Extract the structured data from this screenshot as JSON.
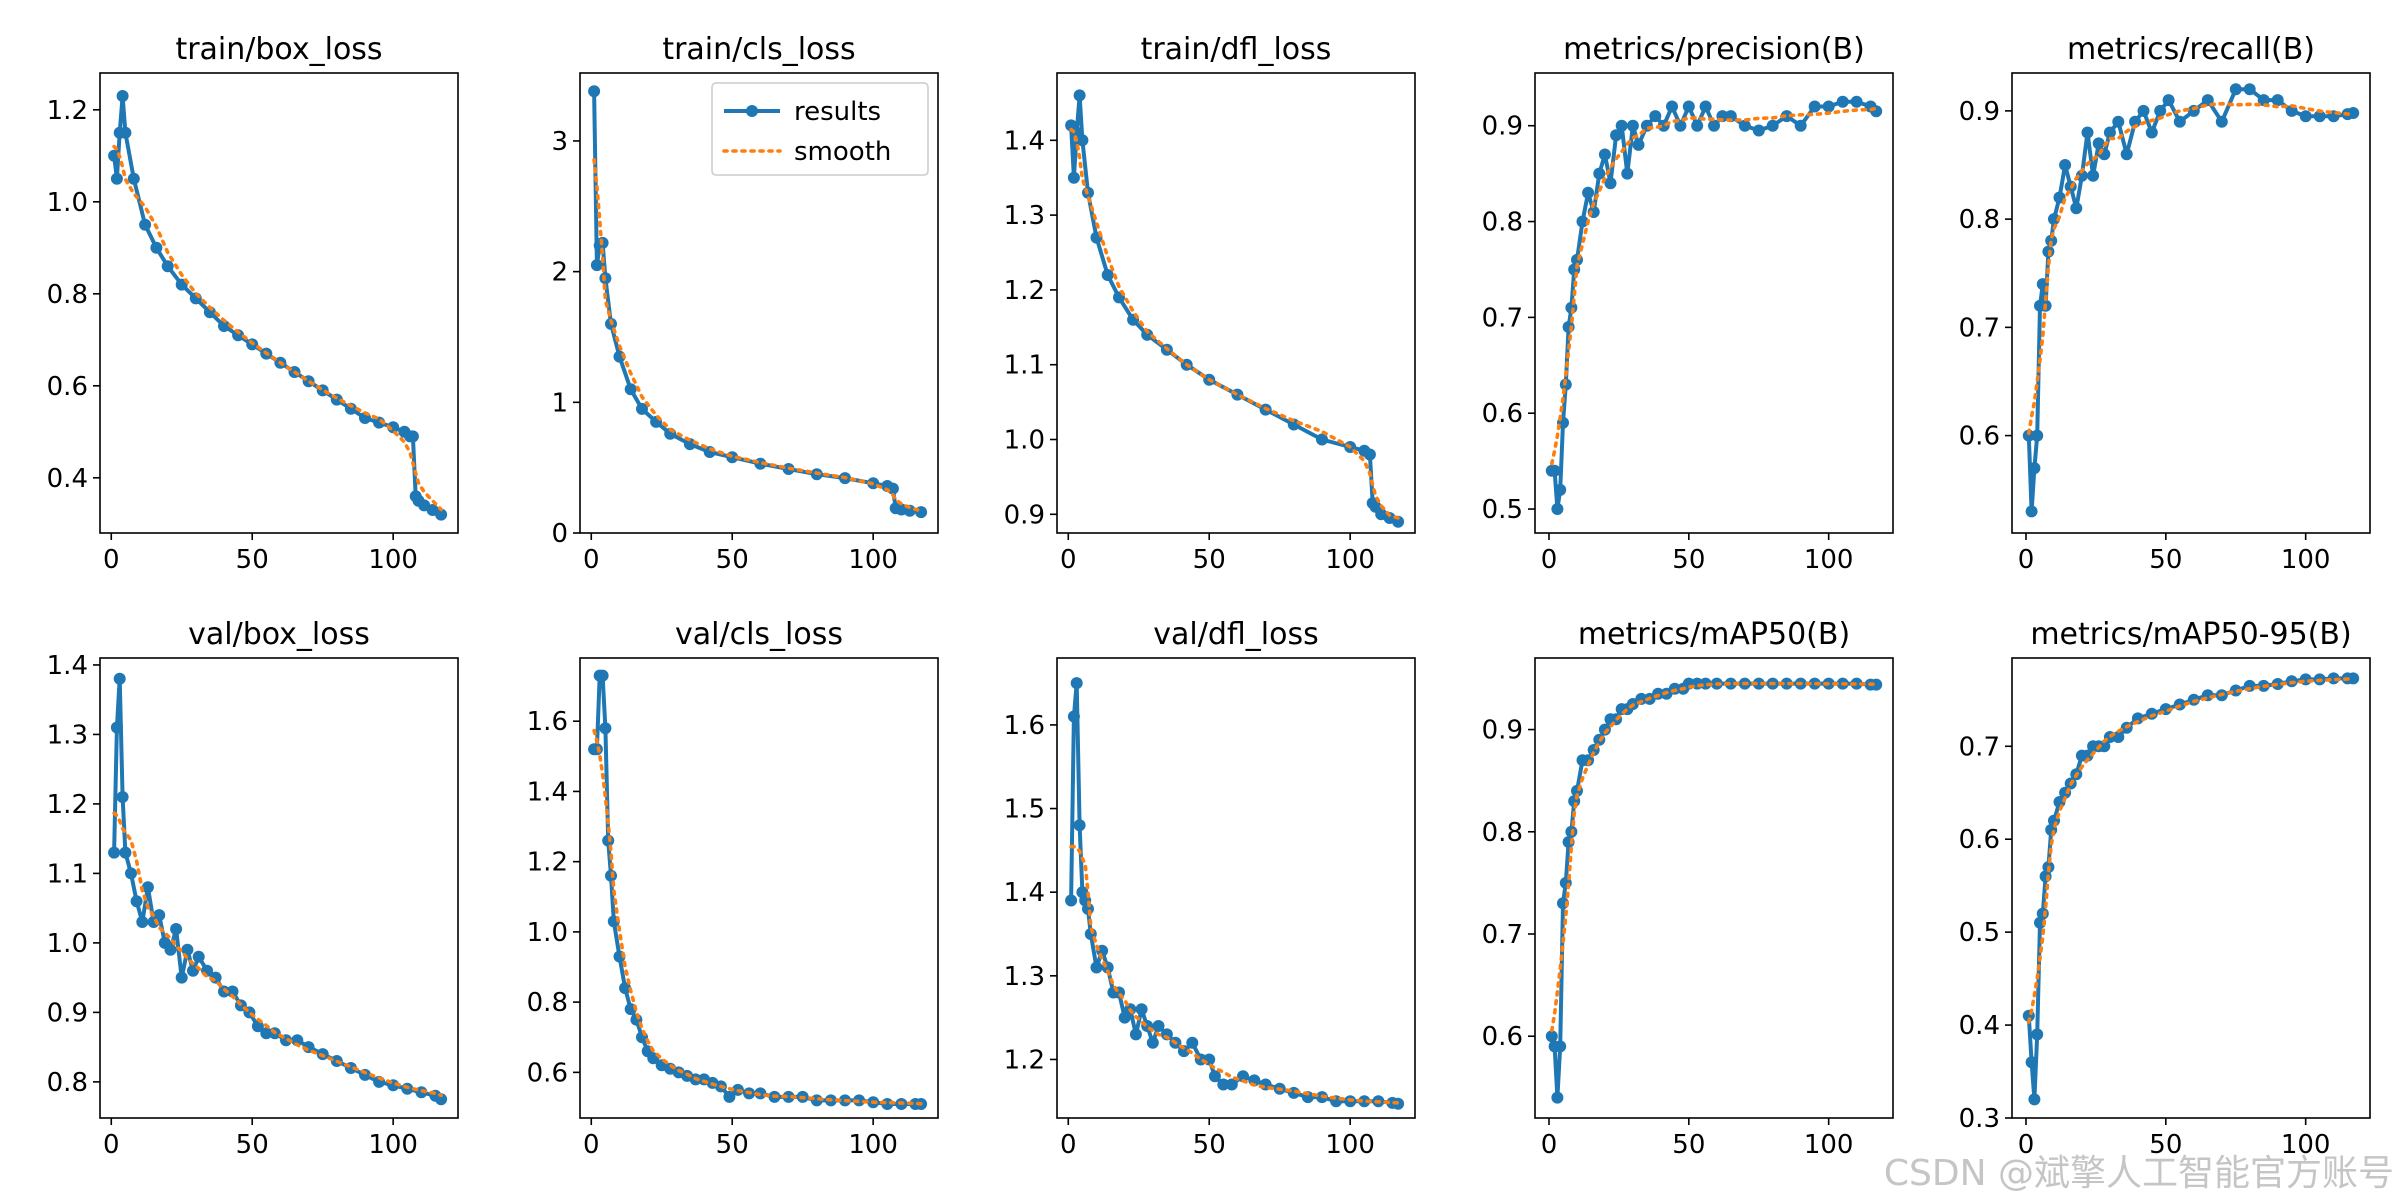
{
  "figure": {
    "watermark": "CSDN @斌擎人工智能官方账号"
  },
  "legend": {
    "results": "results",
    "smooth": "smooth"
  },
  "colors": {
    "results": "#1f77b4",
    "smooth": "#ff7f0e"
  },
  "chart_data": [
    {
      "type": "line",
      "title": "train/box_loss",
      "x": [
        1,
        2,
        3,
        4,
        5,
        8,
        12,
        16,
        20,
        25,
        30,
        35,
        40,
        45,
        50,
        55,
        60,
        65,
        70,
        75,
        80,
        85,
        90,
        95,
        100,
        104,
        106,
        107,
        108,
        109,
        111,
        114,
        117
      ],
      "series": [
        {
          "name": "results",
          "values": [
            1.1,
            1.05,
            1.15,
            1.23,
            1.15,
            1.05,
            0.95,
            0.9,
            0.86,
            0.82,
            0.79,
            0.76,
            0.73,
            0.71,
            0.69,
            0.67,
            0.65,
            0.63,
            0.61,
            0.59,
            0.57,
            0.55,
            0.53,
            0.52,
            0.51,
            0.5,
            0.49,
            0.49,
            0.36,
            0.35,
            0.34,
            0.33,
            0.32
          ]
        }
      ],
      "xlim": [
        -4,
        123
      ],
      "ylim": [
        0.28,
        1.28
      ],
      "xticks": [
        0,
        50,
        100
      ],
      "yticks": [
        0.4,
        0.6,
        0.8,
        1.0,
        1.2
      ],
      "xticklabels": [
        "0",
        "50",
        "100"
      ],
      "yticklabels": [
        "0.4",
        "0.6",
        "0.8",
        "1.0",
        "1.2"
      ]
    },
    {
      "type": "line",
      "title": "train/cls_loss",
      "x": [
        1,
        2,
        3,
        4,
        5,
        7,
        10,
        14,
        18,
        23,
        28,
        35,
        42,
        50,
        60,
        70,
        80,
        90,
        100,
        105,
        107,
        108,
        110,
        113,
        117
      ],
      "series": [
        {
          "name": "results",
          "values": [
            3.38,
            2.05,
            2.2,
            2.22,
            1.95,
            1.6,
            1.35,
            1.1,
            0.95,
            0.85,
            0.76,
            0.68,
            0.62,
            0.58,
            0.53,
            0.49,
            0.45,
            0.42,
            0.38,
            0.36,
            0.34,
            0.19,
            0.18,
            0.17,
            0.16
          ]
        }
      ],
      "xlim": [
        -4,
        123
      ],
      "ylim": [
        0,
        3.52
      ],
      "xticks": [
        0,
        50,
        100
      ],
      "yticks": [
        0,
        1,
        2,
        3
      ],
      "xticklabels": [
        "0",
        "50",
        "100"
      ],
      "yticklabels": [
        "0",
        "1",
        "2",
        "3"
      ],
      "legend": "upper right"
    },
    {
      "type": "line",
      "title": "train/dfl_loss",
      "x": [
        1,
        2,
        3,
        4,
        5,
        7,
        10,
        14,
        18,
        23,
        28,
        35,
        42,
        50,
        60,
        70,
        80,
        90,
        100,
        105,
        107,
        108,
        109,
        111,
        114,
        117
      ],
      "series": [
        {
          "name": "results",
          "values": [
            1.42,
            1.35,
            1.41,
            1.46,
            1.4,
            1.33,
            1.27,
            1.22,
            1.19,
            1.16,
            1.14,
            1.12,
            1.1,
            1.08,
            1.06,
            1.04,
            1.02,
            1.0,
            0.99,
            0.985,
            0.98,
            0.915,
            0.91,
            0.9,
            0.895,
            0.89
          ]
        }
      ],
      "xlim": [
        -4,
        123
      ],
      "ylim": [
        0.875,
        1.49
      ],
      "xticks": [
        0,
        50,
        100
      ],
      "yticks": [
        0.9,
        1.0,
        1.1,
        1.2,
        1.3,
        1.4
      ],
      "xticklabels": [
        "0",
        "50",
        "100"
      ],
      "yticklabels": [
        "0.9",
        "1.0",
        "1.1",
        "1.2",
        "1.3",
        "1.4"
      ]
    },
    {
      "type": "line",
      "title": "metrics/precision(B)",
      "x": [
        1,
        2,
        3,
        4,
        5,
        6,
        7,
        8,
        9,
        10,
        12,
        14,
        16,
        18,
        20,
        22,
        24,
        26,
        28,
        30,
        32,
        35,
        38,
        41,
        44,
        47,
        50,
        53,
        56,
        59,
        62,
        65,
        70,
        75,
        80,
        85,
        90,
        95,
        100,
        105,
        110,
        115,
        117
      ],
      "series": [
        {
          "name": "results",
          "values": [
            0.54,
            0.54,
            0.5,
            0.52,
            0.59,
            0.63,
            0.69,
            0.71,
            0.75,
            0.76,
            0.8,
            0.83,
            0.81,
            0.85,
            0.87,
            0.84,
            0.89,
            0.9,
            0.85,
            0.9,
            0.88,
            0.9,
            0.91,
            0.9,
            0.92,
            0.9,
            0.92,
            0.9,
            0.92,
            0.9,
            0.91,
            0.91,
            0.9,
            0.895,
            0.9,
            0.91,
            0.9,
            0.92,
            0.92,
            0.925,
            0.925,
            0.92,
            0.915
          ]
        }
      ],
      "xlim": [
        -5,
        123
      ],
      "ylim": [
        0.475,
        0.955
      ],
      "xticks": [
        0,
        50,
        100
      ],
      "yticks": [
        0.5,
        0.6,
        0.7,
        0.8,
        0.9
      ],
      "xticklabels": [
        "0",
        "50",
        "100"
      ],
      "yticklabels": [
        "0.5",
        "0.6",
        "0.7",
        "0.8",
        "0.9"
      ]
    },
    {
      "type": "line",
      "title": "metrics/recall(B)",
      "x": [
        1,
        2,
        3,
        4,
        5,
        6,
        7,
        8,
        9,
        10,
        12,
        14,
        16,
        18,
        20,
        22,
        24,
        26,
        28,
        30,
        33,
        36,
        39,
        42,
        45,
        48,
        51,
        55,
        60,
        65,
        70,
        75,
        80,
        85,
        90,
        95,
        100,
        105,
        110,
        115,
        117
      ],
      "series": [
        {
          "name": "results",
          "values": [
            0.6,
            0.53,
            0.57,
            0.6,
            0.72,
            0.74,
            0.72,
            0.77,
            0.78,
            0.8,
            0.82,
            0.85,
            0.83,
            0.81,
            0.84,
            0.88,
            0.84,
            0.87,
            0.86,
            0.88,
            0.89,
            0.86,
            0.89,
            0.9,
            0.88,
            0.9,
            0.91,
            0.89,
            0.9,
            0.91,
            0.89,
            0.92,
            0.92,
            0.91,
            0.91,
            0.9,
            0.895,
            0.895,
            0.895,
            0.897,
            0.898
          ]
        }
      ],
      "xlim": [
        -5,
        123
      ],
      "ylim": [
        0.51,
        0.935
      ],
      "xticks": [
        0,
        50,
        100
      ],
      "yticks": [
        0.6,
        0.7,
        0.8,
        0.9
      ],
      "xticklabels": [
        "0",
        "50",
        "100"
      ],
      "yticklabels": [
        "0.6",
        "0.7",
        "0.8",
        "0.9"
      ]
    },
    {
      "type": "line",
      "title": "val/box_loss",
      "x": [
        1,
        2,
        3,
        4,
        5,
        7,
        9,
        11,
        13,
        15,
        17,
        19,
        21,
        23,
        25,
        27,
        29,
        31,
        34,
        37,
        40,
        43,
        46,
        49,
        52,
        55,
        58,
        62,
        66,
        70,
        75,
        80,
        85,
        90,
        95,
        100,
        105,
        110,
        115,
        117
      ],
      "series": [
        {
          "name": "results",
          "values": [
            1.13,
            1.31,
            1.38,
            1.21,
            1.13,
            1.1,
            1.06,
            1.03,
            1.08,
            1.03,
            1.04,
            1.0,
            0.99,
            1.02,
            0.95,
            0.99,
            0.96,
            0.98,
            0.96,
            0.95,
            0.93,
            0.93,
            0.91,
            0.9,
            0.88,
            0.87,
            0.87,
            0.86,
            0.86,
            0.85,
            0.84,
            0.83,
            0.82,
            0.81,
            0.8,
            0.795,
            0.79,
            0.785,
            0.78,
            0.775
          ]
        }
      ],
      "xlim": [
        -4,
        123
      ],
      "ylim": [
        0.748,
        1.41
      ],
      "xticks": [
        0,
        50,
        100
      ],
      "yticks": [
        0.8,
        0.9,
        1.0,
        1.1,
        1.2,
        1.3,
        1.4
      ],
      "xticklabels": [
        "0",
        "50",
        "100"
      ],
      "yticklabels": [
        "0.8",
        "0.9",
        "1.0",
        "1.1",
        "1.2",
        "1.3",
        "1.4"
      ]
    },
    {
      "type": "line",
      "title": "val/cls_loss",
      "x": [
        1,
        2,
        3,
        4,
        5,
        6,
        7,
        8,
        10,
        12,
        14,
        16,
        18,
        20,
        22,
        25,
        28,
        31,
        34,
        37,
        40,
        43,
        46,
        49,
        52,
        56,
        60,
        65,
        70,
        75,
        80,
        85,
        90,
        95,
        100,
        105,
        110,
        115,
        117
      ],
      "series": [
        {
          "name": "results",
          "values": [
            1.52,
            1.52,
            1.73,
            1.73,
            1.58,
            1.26,
            1.16,
            1.03,
            0.93,
            0.84,
            0.78,
            0.75,
            0.7,
            0.66,
            0.64,
            0.62,
            0.61,
            0.6,
            0.59,
            0.58,
            0.58,
            0.57,
            0.56,
            0.53,
            0.55,
            0.54,
            0.54,
            0.53,
            0.53,
            0.53,
            0.52,
            0.52,
            0.52,
            0.52,
            0.515,
            0.51,
            0.51,
            0.51,
            0.51
          ]
        }
      ],
      "xlim": [
        -4,
        123
      ],
      "ylim": [
        0.47,
        1.78
      ],
      "xticks": [
        0,
        50,
        100
      ],
      "yticks": [
        0.6,
        0.8,
        1.0,
        1.2,
        1.4,
        1.6
      ],
      "xticklabels": [
        "0",
        "50",
        "100"
      ],
      "yticklabels": [
        "0.6",
        "0.8",
        "1.0",
        "1.2",
        "1.4",
        "1.6"
      ]
    },
    {
      "type": "line",
      "title": "val/dfl_loss",
      "x": [
        1,
        2,
        3,
        4,
        5,
        6,
        7,
        8,
        10,
        12,
        14,
        16,
        18,
        20,
        22,
        24,
        26,
        28,
        30,
        32,
        35,
        38,
        41,
        44,
        47,
        50,
        52,
        55,
        58,
        62,
        66,
        70,
        75,
        80,
        85,
        90,
        95,
        100,
        105,
        110,
        115,
        117
      ],
      "series": [
        {
          "name": "results",
          "values": [
            1.39,
            1.61,
            1.65,
            1.48,
            1.4,
            1.39,
            1.38,
            1.35,
            1.31,
            1.33,
            1.31,
            1.28,
            1.28,
            1.25,
            1.26,
            1.23,
            1.26,
            1.24,
            1.22,
            1.24,
            1.23,
            1.22,
            1.21,
            1.22,
            1.2,
            1.2,
            1.18,
            1.17,
            1.17,
            1.18,
            1.175,
            1.17,
            1.165,
            1.16,
            1.155,
            1.155,
            1.15,
            1.15,
            1.15,
            1.15,
            1.148,
            1.147
          ]
        }
      ],
      "xlim": [
        -4,
        123
      ],
      "ylim": [
        1.13,
        1.68
      ],
      "xticks": [
        0,
        50,
        100
      ],
      "yticks": [
        1.2,
        1.3,
        1.4,
        1.5,
        1.6
      ],
      "xticklabels": [
        "0",
        "50",
        "100"
      ],
      "yticklabels": [
        "1.2",
        "1.3",
        "1.4",
        "1.5",
        "1.6"
      ]
    },
    {
      "type": "line",
      "title": "metrics/mAP50(B)",
      "x": [
        1,
        2,
        3,
        4,
        5,
        6,
        7,
        8,
        9,
        10,
        12,
        14,
        16,
        18,
        20,
        22,
        24,
        26,
        28,
        30,
        33,
        36,
        39,
        42,
        45,
        48,
        50,
        53,
        56,
        60,
        65,
        70,
        75,
        80,
        85,
        90,
        95,
        100,
        105,
        110,
        115,
        117
      ],
      "series": [
        {
          "name": "results",
          "values": [
            0.6,
            0.59,
            0.54,
            0.59,
            0.73,
            0.75,
            0.79,
            0.8,
            0.83,
            0.84,
            0.87,
            0.87,
            0.88,
            0.89,
            0.9,
            0.91,
            0.91,
            0.92,
            0.92,
            0.925,
            0.93,
            0.93,
            0.935,
            0.935,
            0.94,
            0.94,
            0.945,
            0.945,
            0.945,
            0.945,
            0.945,
            0.945,
            0.945,
            0.945,
            0.945,
            0.945,
            0.945,
            0.945,
            0.945,
            0.945,
            0.944,
            0.944
          ]
        }
      ],
      "xlim": [
        -5,
        123
      ],
      "ylim": [
        0.52,
        0.97
      ],
      "xticks": [
        0,
        50,
        100
      ],
      "yticks": [
        0.6,
        0.7,
        0.8,
        0.9
      ],
      "xticklabels": [
        "0",
        "50",
        "100"
      ],
      "yticklabels": [
        "0.6",
        "0.7",
        "0.8",
        "0.9"
      ]
    },
    {
      "type": "line",
      "title": "metrics/mAP50-95(B)",
      "x": [
        1,
        2,
        3,
        4,
        5,
        6,
        7,
        8,
        9,
        10,
        12,
        14,
        16,
        18,
        20,
        22,
        24,
        26,
        28,
        30,
        33,
        36,
        40,
        45,
        50,
        55,
        60,
        65,
        70,
        75,
        80,
        85,
        90,
        95,
        100,
        105,
        110,
        115,
        117
      ],
      "series": [
        {
          "name": "results",
          "values": [
            0.41,
            0.36,
            0.32,
            0.39,
            0.51,
            0.52,
            0.56,
            0.57,
            0.61,
            0.62,
            0.64,
            0.65,
            0.66,
            0.67,
            0.69,
            0.69,
            0.7,
            0.7,
            0.7,
            0.71,
            0.71,
            0.72,
            0.73,
            0.735,
            0.74,
            0.745,
            0.75,
            0.755,
            0.755,
            0.76,
            0.765,
            0.765,
            0.767,
            0.77,
            0.772,
            0.772,
            0.773,
            0.773,
            0.773
          ]
        }
      ],
      "xlim": [
        -5,
        123
      ],
      "ylim": [
        0.3,
        0.795
      ],
      "xticks": [
        0,
        50,
        100
      ],
      "yticks": [
        0.3,
        0.4,
        0.5,
        0.6,
        0.7
      ],
      "xticklabels": [
        "0",
        "50",
        "100"
      ],
      "yticklabels": [
        "0.3",
        "0.4",
        "0.5",
        "0.6",
        "0.7"
      ]
    }
  ]
}
